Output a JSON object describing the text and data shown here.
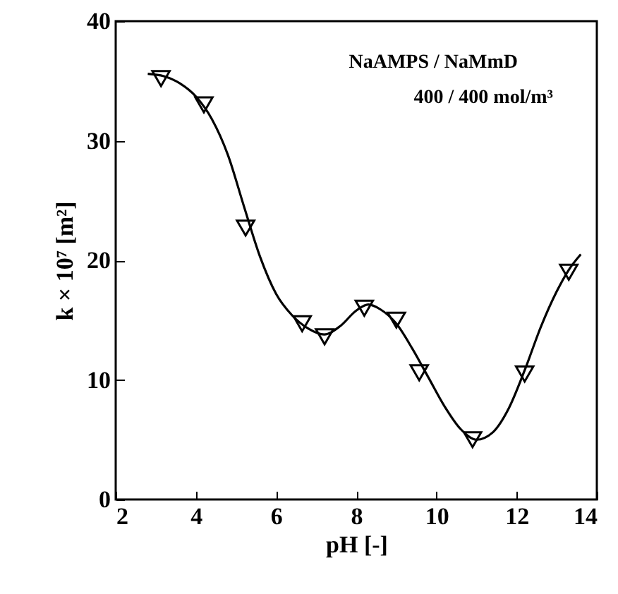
{
  "chart_data": {
    "type": "scatter",
    "xlabel": "pH [-]",
    "ylabel": "k × 10⁷ [m²]",
    "annotations": [
      "NaAMPS / NaMmD",
      "400 / 400 mol/m³"
    ],
    "xlim": [
      2,
      14
    ],
    "xticks": [
      2,
      4,
      6,
      8,
      10,
      12,
      14
    ],
    "ylim": [
      0,
      40
    ],
    "yticks": [
      0,
      10,
      20,
      30,
      40
    ],
    "grid": false,
    "series": [
      {
        "color": "#000000",
        "marker": "triangle",
        "x": [
          3.13,
          4.2,
          5.24,
          6.65,
          7.21,
          8.2,
          9.0,
          9.57,
          10.9,
          12.2,
          13.3
        ],
        "values": [
          35.2,
          33.0,
          22.7,
          14.7,
          13.6,
          16.0,
          15.0,
          10.6,
          5.0,
          10.5,
          19.0
        ]
      },
      {
        "type": "line",
        "color": "#000000",
        "marker": "none",
        "line_style": "solid",
        "x": [
          2.8,
          3.2,
          3.6,
          4.0,
          4.4,
          4.8,
          5.2,
          5.6,
          6.0,
          6.4,
          6.8,
          7.2,
          7.6,
          8.0,
          8.3,
          8.6,
          9.0,
          9.4,
          9.8,
          10.2,
          10.6,
          11.0,
          11.4,
          11.8,
          12.2,
          12.6,
          13.0,
          13.3,
          13.6
        ],
        "values": [
          35.6,
          35.4,
          34.8,
          33.7,
          31.8,
          28.8,
          24.5,
          20.3,
          17.2,
          15.4,
          14.3,
          13.8,
          14.5,
          15.8,
          16.3,
          15.9,
          14.7,
          12.6,
          10.2,
          7.8,
          5.9,
          5.0,
          5.6,
          7.6,
          10.8,
          14.4,
          17.4,
          19.2,
          20.5
        ]
      }
    ]
  }
}
